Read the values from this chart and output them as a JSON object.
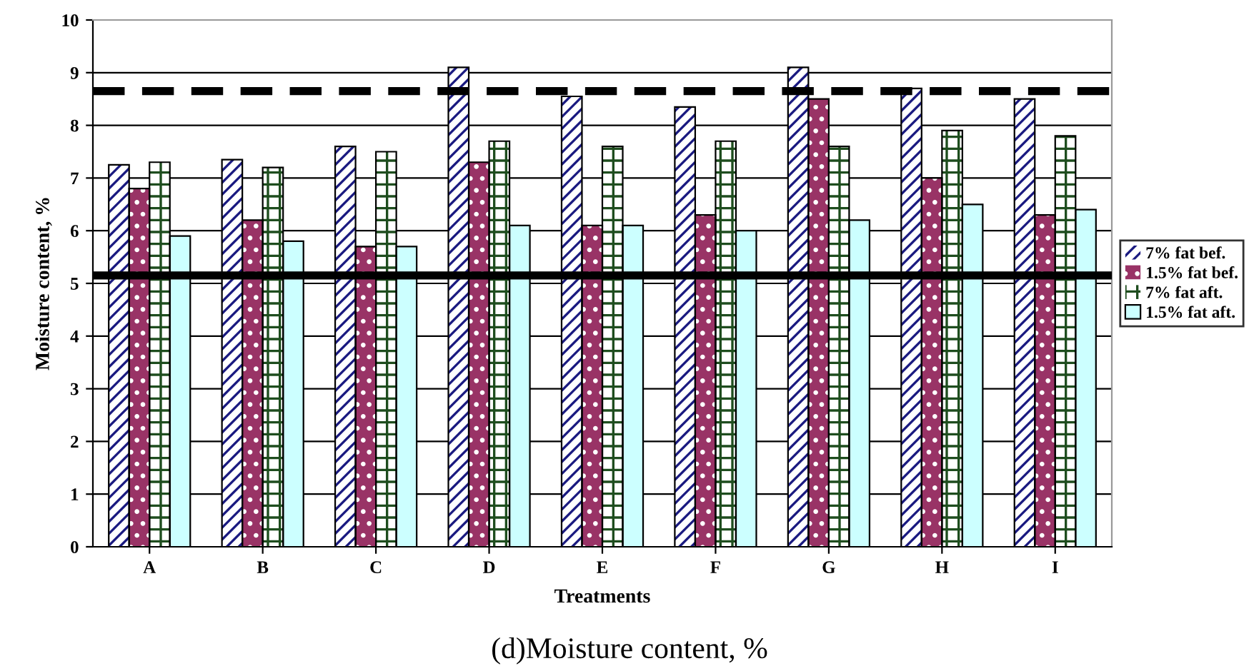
{
  "chart_data": {
    "type": "bar",
    "xlabel": "Treatments",
    "ylabel": "Moisture content, %",
    "categories": [
      "A",
      "B",
      "C",
      "D",
      "E",
      "F",
      "G",
      "H",
      "I"
    ],
    "series": [
      {
        "name": "7% fat bef.",
        "color": "#1a1a80",
        "values": [
          7.25,
          7.35,
          7.6,
          9.1,
          8.55,
          8.35,
          9.1,
          8.7,
          8.5
        ]
      },
      {
        "name": "1.5% fat bef.",
        "color": "#993366",
        "values": [
          6.8,
          6.2,
          5.7,
          7.3,
          6.1,
          6.3,
          8.5,
          7.0,
          6.3
        ]
      },
      {
        "name": "7% fat aft.",
        "color": "#1e4d1e",
        "values": [
          7.3,
          7.2,
          7.5,
          7.7,
          7.6,
          7.7,
          7.6,
          7.9,
          7.8
        ]
      },
      {
        "name": "1.5% fat aft.",
        "color": "#ccffff",
        "values": [
          5.9,
          5.8,
          5.7,
          6.1,
          6.1,
          6.0,
          6.2,
          6.5,
          6.4
        ]
      }
    ],
    "ylim": [
      0,
      10
    ],
    "yticks": [
      0,
      1,
      2,
      3,
      4,
      5,
      6,
      7,
      8,
      9,
      10
    ],
    "grid": "y",
    "legend": "right",
    "ref_lines": [
      {
        "axis": "y",
        "value": 8.65,
        "line_style": "dashed",
        "color": "#000000"
      },
      {
        "axis": "y",
        "value": 5.15,
        "line_style": "solid",
        "color": "#000000"
      }
    ],
    "annotations": [
      "(d)Moisture content, %"
    ]
  }
}
